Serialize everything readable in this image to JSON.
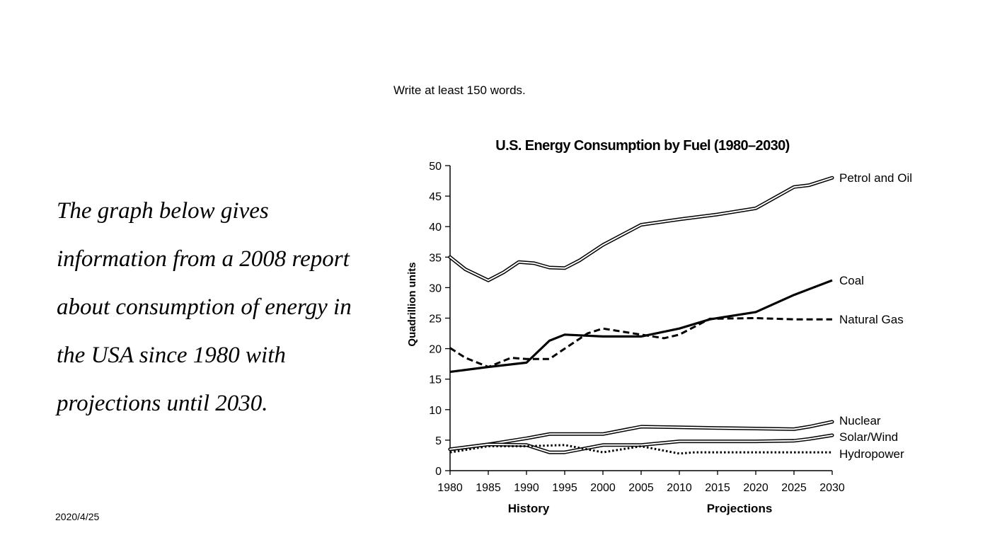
{
  "instruction": "Write at least 150 words.",
  "prompt_lines": [
    "The graph below gives",
    "information from a 2008 report",
    "about consumption of energy in",
    "the USA since 1980 with",
    "projections until 2030."
  ],
  "date": "2020/4/25",
  "chart_data": {
    "type": "line",
    "title": "U.S. Energy Consumption by Fuel (1980–2030)",
    "xlabel": "",
    "ylabel": "Quadrillion units",
    "x_period_labels": [
      "History",
      "Projections"
    ],
    "x": [
      1980,
      1985,
      1990,
      1995,
      2000,
      2005,
      2010,
      2015,
      2020,
      2025,
      2030
    ],
    "x_ticks": [
      "1980",
      "1985",
      "1990",
      "1995",
      "2000",
      "2005",
      "2010",
      "2015",
      "2020",
      "2025",
      "2030"
    ],
    "y_ticks": [
      "0",
      "5",
      "10",
      "15",
      "20",
      "25",
      "30",
      "35",
      "40",
      "45",
      "50"
    ],
    "xlim": [
      1980,
      2030
    ],
    "ylim": [
      0,
      50
    ],
    "grid": false,
    "series": [
      {
        "name": "Petrol and Oil",
        "style": "double",
        "points": [
          [
            1980,
            35
          ],
          [
            1982,
            33
          ],
          [
            1985,
            31.2
          ],
          [
            1987,
            32.5
          ],
          [
            1989,
            34.2
          ],
          [
            1991,
            34
          ],
          [
            1993,
            33.3
          ],
          [
            1995,
            33.2
          ],
          [
            1997,
            34.5
          ],
          [
            2000,
            37
          ],
          [
            2005,
            40.3
          ],
          [
            2010,
            41.2
          ],
          [
            2015,
            42
          ],
          [
            2020,
            43
          ],
          [
            2025,
            46.5
          ],
          [
            2027,
            46.8
          ],
          [
            2030,
            48
          ]
        ]
      },
      {
        "name": "Coal",
        "style": "solid",
        "points": [
          [
            1980,
            16.2
          ],
          [
            1985,
            17
          ],
          [
            1990,
            17.7
          ],
          [
            1993,
            21.3
          ],
          [
            1995,
            22.3
          ],
          [
            2000,
            22
          ],
          [
            2005,
            22
          ],
          [
            2010,
            23.3
          ],
          [
            2014,
            24.8
          ],
          [
            2020,
            26
          ],
          [
            2025,
            28.8
          ],
          [
            2030,
            31.2
          ]
        ]
      },
      {
        "name": "Natural Gas",
        "style": "dashed",
        "points": [
          [
            1980,
            20.1
          ],
          [
            1982,
            18.5
          ],
          [
            1985,
            17
          ],
          [
            1988,
            18.5
          ],
          [
            1990,
            18.3
          ],
          [
            1993,
            18.3
          ],
          [
            1995,
            20
          ],
          [
            1998,
            22.5
          ],
          [
            2000,
            23.3
          ],
          [
            2005,
            22.3
          ],
          [
            2008,
            21.7
          ],
          [
            2010,
            22.3
          ],
          [
            2014,
            24.9
          ],
          [
            2020,
            25
          ],
          [
            2025,
            24.8
          ],
          [
            2030,
            24.8
          ]
        ]
      },
      {
        "name": "Nuclear",
        "style": "double",
        "points": [
          [
            1980,
            3.5
          ],
          [
            1985,
            4.3
          ],
          [
            1990,
            5.3
          ],
          [
            1993,
            6
          ],
          [
            1995,
            6
          ],
          [
            2000,
            6
          ],
          [
            2005,
            7.2
          ],
          [
            2010,
            7.1
          ],
          [
            2015,
            7
          ],
          [
            2020,
            6.9
          ],
          [
            2025,
            6.8
          ],
          [
            2027,
            7.2
          ],
          [
            2030,
            8
          ]
        ]
      },
      {
        "name": "Solar/Wind",
        "style": "double",
        "points": [
          [
            1980,
            3.5
          ],
          [
            1985,
            4.3
          ],
          [
            1990,
            4.2
          ],
          [
            1993,
            3
          ],
          [
            1995,
            3
          ],
          [
            2000,
            4.2
          ],
          [
            2005,
            4.2
          ],
          [
            2010,
            4.8
          ],
          [
            2015,
            4.8
          ],
          [
            2020,
            4.8
          ],
          [
            2025,
            4.9
          ],
          [
            2027,
            5.2
          ],
          [
            2030,
            5.8
          ]
        ]
      },
      {
        "name": "Hydropower",
        "style": "dotted",
        "points": [
          [
            1980,
            3
          ],
          [
            1985,
            4
          ],
          [
            1990,
            4
          ],
          [
            1995,
            4.2
          ],
          [
            2000,
            3
          ],
          [
            2005,
            4
          ],
          [
            2010,
            2.8
          ],
          [
            2012,
            3
          ],
          [
            2020,
            3
          ],
          [
            2030,
            3
          ]
        ]
      }
    ]
  }
}
